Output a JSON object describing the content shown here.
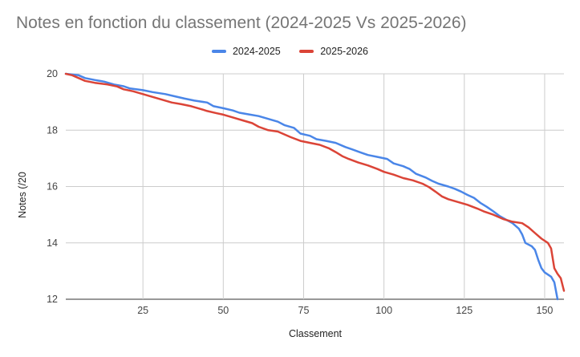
{
  "chart_data": {
    "type": "line",
    "title": "Notes en fonction du classement (2024-2025 Vs 2025-2026)",
    "xlabel": "Classement",
    "ylabel": "Notes (/20",
    "xlim": [
      1,
      156
    ],
    "ylim": [
      12,
      20
    ],
    "x_ticks": [
      25,
      50,
      75,
      100,
      125,
      150
    ],
    "y_ticks": [
      12,
      14,
      16,
      18,
      20
    ],
    "grid": true,
    "legend": "top",
    "series": [
      {
        "name": "2024-2025",
        "color": "#4a86e8",
        "points": [
          [
            1,
            20.0
          ],
          [
            5,
            19.95
          ],
          [
            7,
            19.85
          ],
          [
            10,
            19.78
          ],
          [
            13,
            19.72
          ],
          [
            16,
            19.62
          ],
          [
            19,
            19.56
          ],
          [
            21,
            19.48
          ],
          [
            25,
            19.42
          ],
          [
            28,
            19.35
          ],
          [
            32,
            19.28
          ],
          [
            35,
            19.2
          ],
          [
            38,
            19.12
          ],
          [
            41,
            19.05
          ],
          [
            45,
            18.98
          ],
          [
            47,
            18.85
          ],
          [
            50,
            18.78
          ],
          [
            53,
            18.7
          ],
          [
            55,
            18.62
          ],
          [
            58,
            18.56
          ],
          [
            61,
            18.5
          ],
          [
            64,
            18.4
          ],
          [
            67,
            18.3
          ],
          [
            69,
            18.18
          ],
          [
            72,
            18.08
          ],
          [
            74,
            17.88
          ],
          [
            77,
            17.8
          ],
          [
            79,
            17.68
          ],
          [
            82,
            17.62
          ],
          [
            85,
            17.55
          ],
          [
            88,
            17.4
          ],
          [
            90,
            17.32
          ],
          [
            93,
            17.2
          ],
          [
            95,
            17.12
          ],
          [
            98,
            17.05
          ],
          [
            101,
            16.98
          ],
          [
            103,
            16.82
          ],
          [
            106,
            16.72
          ],
          [
            108,
            16.62
          ],
          [
            110,
            16.45
          ],
          [
            113,
            16.32
          ],
          [
            115,
            16.2
          ],
          [
            117,
            16.1
          ],
          [
            120,
            16.0
          ],
          [
            122,
            15.92
          ],
          [
            124,
            15.82
          ],
          [
            126,
            15.7
          ],
          [
            128,
            15.6
          ],
          [
            130,
            15.42
          ],
          [
            132,
            15.28
          ],
          [
            134,
            15.12
          ],
          [
            136,
            14.95
          ],
          [
            138,
            14.82
          ],
          [
            140,
            14.7
          ],
          [
            142,
            14.5
          ],
          [
            143,
            14.3
          ],
          [
            144,
            14.0
          ],
          [
            146,
            13.88
          ],
          [
            147,
            13.75
          ],
          [
            148,
            13.4
          ],
          [
            149,
            13.1
          ],
          [
            150,
            12.95
          ],
          [
            152,
            12.8
          ],
          [
            153,
            12.6
          ],
          [
            154,
            12.0
          ]
        ]
      },
      {
        "name": "2025-2026",
        "color": "#db4437",
        "points": [
          [
            1,
            20.0
          ],
          [
            3,
            19.95
          ],
          [
            5,
            19.85
          ],
          [
            7,
            19.75
          ],
          [
            10,
            19.68
          ],
          [
            14,
            19.62
          ],
          [
            17,
            19.55
          ],
          [
            19,
            19.45
          ],
          [
            22,
            19.38
          ],
          [
            25,
            19.28
          ],
          [
            28,
            19.18
          ],
          [
            31,
            19.08
          ],
          [
            34,
            18.98
          ],
          [
            37,
            18.92
          ],
          [
            40,
            18.85
          ],
          [
            43,
            18.75
          ],
          [
            45,
            18.68
          ],
          [
            48,
            18.6
          ],
          [
            50,
            18.55
          ],
          [
            53,
            18.45
          ],
          [
            56,
            18.35
          ],
          [
            59,
            18.25
          ],
          [
            61,
            18.12
          ],
          [
            64,
            18.0
          ],
          [
            67,
            17.95
          ],
          [
            69,
            17.85
          ],
          [
            71,
            17.75
          ],
          [
            74,
            17.62
          ],
          [
            77,
            17.55
          ],
          [
            80,
            17.48
          ],
          [
            83,
            17.35
          ],
          [
            85,
            17.22
          ],
          [
            87,
            17.08
          ],
          [
            89,
            16.98
          ],
          [
            92,
            16.85
          ],
          [
            95,
            16.75
          ],
          [
            98,
            16.62
          ],
          [
            100,
            16.52
          ],
          [
            103,
            16.42
          ],
          [
            106,
            16.3
          ],
          [
            109,
            16.22
          ],
          [
            112,
            16.1
          ],
          [
            114,
            15.98
          ],
          [
            116,
            15.82
          ],
          [
            118,
            15.65
          ],
          [
            120,
            15.55
          ],
          [
            123,
            15.45
          ],
          [
            126,
            15.35
          ],
          [
            129,
            15.22
          ],
          [
            131,
            15.12
          ],
          [
            134,
            15.0
          ],
          [
            137,
            14.85
          ],
          [
            140,
            14.75
          ],
          [
            143,
            14.7
          ],
          [
            145,
            14.55
          ],
          [
            147,
            14.35
          ],
          [
            149,
            14.15
          ],
          [
            151,
            14.0
          ],
          [
            152,
            13.8
          ],
          [
            153,
            13.1
          ],
          [
            154,
            12.9
          ],
          [
            155,
            12.75
          ],
          [
            156,
            12.3
          ]
        ]
      }
    ]
  }
}
